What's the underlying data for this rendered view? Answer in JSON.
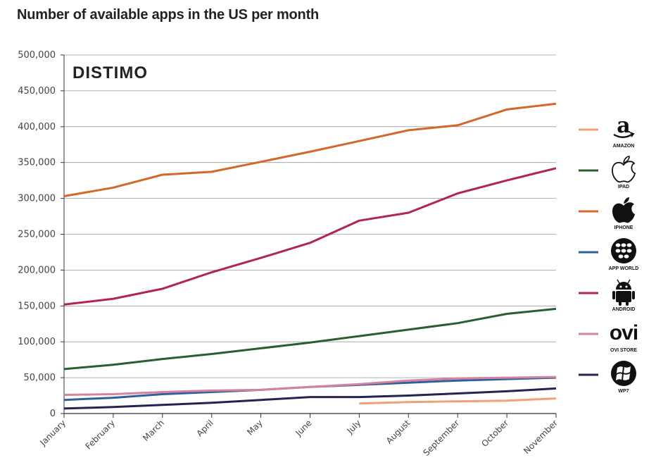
{
  "title": "Number of available apps in the US per month",
  "brand": "DISTIMO",
  "chart_data": {
    "type": "line",
    "title": "Number of available apps in the US per month",
    "xlabel": "",
    "ylabel": "",
    "ylim": [
      0,
      500000
    ],
    "yticks": [
      "0",
      "50,000",
      "100,000",
      "150,000",
      "200,000",
      "250,000",
      "300,000",
      "350,000",
      "400,000",
      "450,000",
      "500,000"
    ],
    "categories": [
      "January",
      "February",
      "March",
      "April",
      "May",
      "June",
      "July",
      "August",
      "September",
      "October",
      "November"
    ],
    "grid": true,
    "legend_position": "right",
    "series": [
      {
        "name": "AMAZON",
        "color": "#f0a07a",
        "icon": "amazon-icon",
        "values": [
          null,
          null,
          null,
          null,
          null,
          null,
          14000,
          16000,
          17000,
          18000,
          21000
        ]
      },
      {
        "name": "IPAD",
        "color": "#2a5e2f",
        "icon": "apple-outline-icon",
        "values": [
          62000,
          68000,
          76000,
          83000,
          91000,
          99000,
          108000,
          117000,
          126000,
          139000,
          146000
        ]
      },
      {
        "name": "IPHONE",
        "color": "#d4672a",
        "icon": "apple-filled-icon",
        "values": [
          303000,
          315000,
          333000,
          337000,
          351000,
          365000,
          380000,
          395000,
          402000,
          424000,
          432000
        ]
      },
      {
        "name": "APP WORLD",
        "color": "#2f5f9e",
        "icon": "blackberry-icon",
        "values": [
          19000,
          22000,
          27000,
          30000,
          33000,
          37000,
          40000,
          43000,
          46000,
          48000,
          50000
        ]
      },
      {
        "name": "ANDROID",
        "color": "#b0264f",
        "icon": "android-icon",
        "values": [
          152000,
          160000,
          174000,
          197000,
          217000,
          238000,
          269000,
          280000,
          307000,
          325000,
          342000
        ]
      },
      {
        "name": "OVI STORE",
        "color": "#d6819d",
        "icon": "ovi-icon",
        "values": [
          26000,
          27000,
          30000,
          32000,
          33000,
          37000,
          41000,
          46000,
          49000,
          50000,
          51000
        ]
      },
      {
        "name": "WP7",
        "color": "#242350",
        "icon": "windows-icon",
        "values": [
          7000,
          9000,
          12000,
          15000,
          19000,
          23000,
          23000,
          25000,
          28000,
          31000,
          35000
        ]
      }
    ]
  }
}
